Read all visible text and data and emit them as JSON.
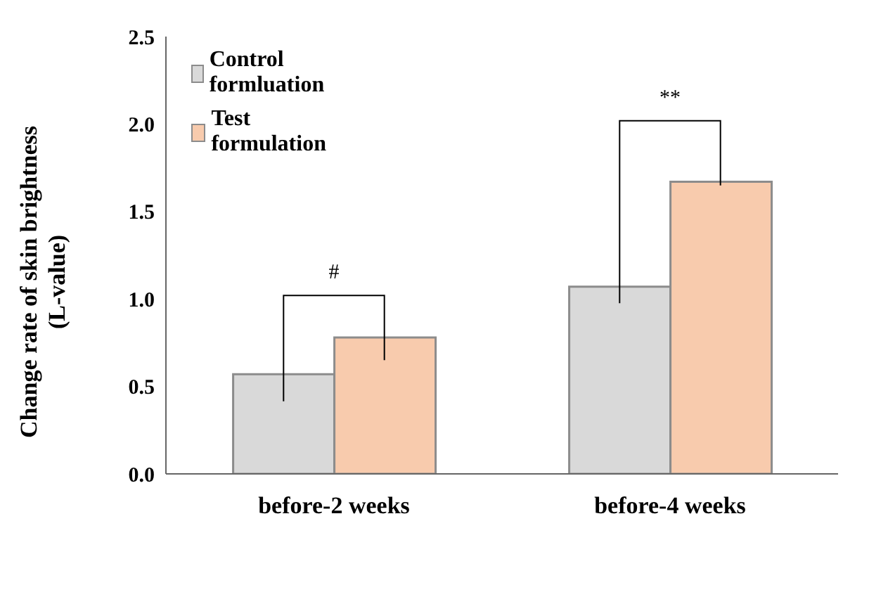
{
  "chart_data": {
    "type": "bar",
    "ylabel": "Change rate of skin brightness\n(L-value)",
    "categories": [
      "before-2 weeks",
      "before-4 weeks"
    ],
    "series": [
      {
        "name": "Control formluation",
        "color": "#d9d9d9",
        "values": [
          0.57,
          1.07
        ]
      },
      {
        "name": "Test formulation",
        "color": "#f8cbad",
        "values": [
          0.78,
          1.67
        ]
      }
    ],
    "ylim": [
      0,
      2.5
    ],
    "yticks": [
      {
        "value": 0,
        "label": "0.0"
      },
      {
        "value": 0.5,
        "label": "0.5"
      },
      {
        "value": 1,
        "label": "1.0"
      },
      {
        "value": 1.5,
        "label": "1.5"
      },
      {
        "value": 2,
        "label": "2.0"
      },
      {
        "value": 2.5,
        "label": "2.5"
      }
    ],
    "grid": false,
    "legend": "top left",
    "annotations": [
      "#",
      "**"
    ]
  }
}
